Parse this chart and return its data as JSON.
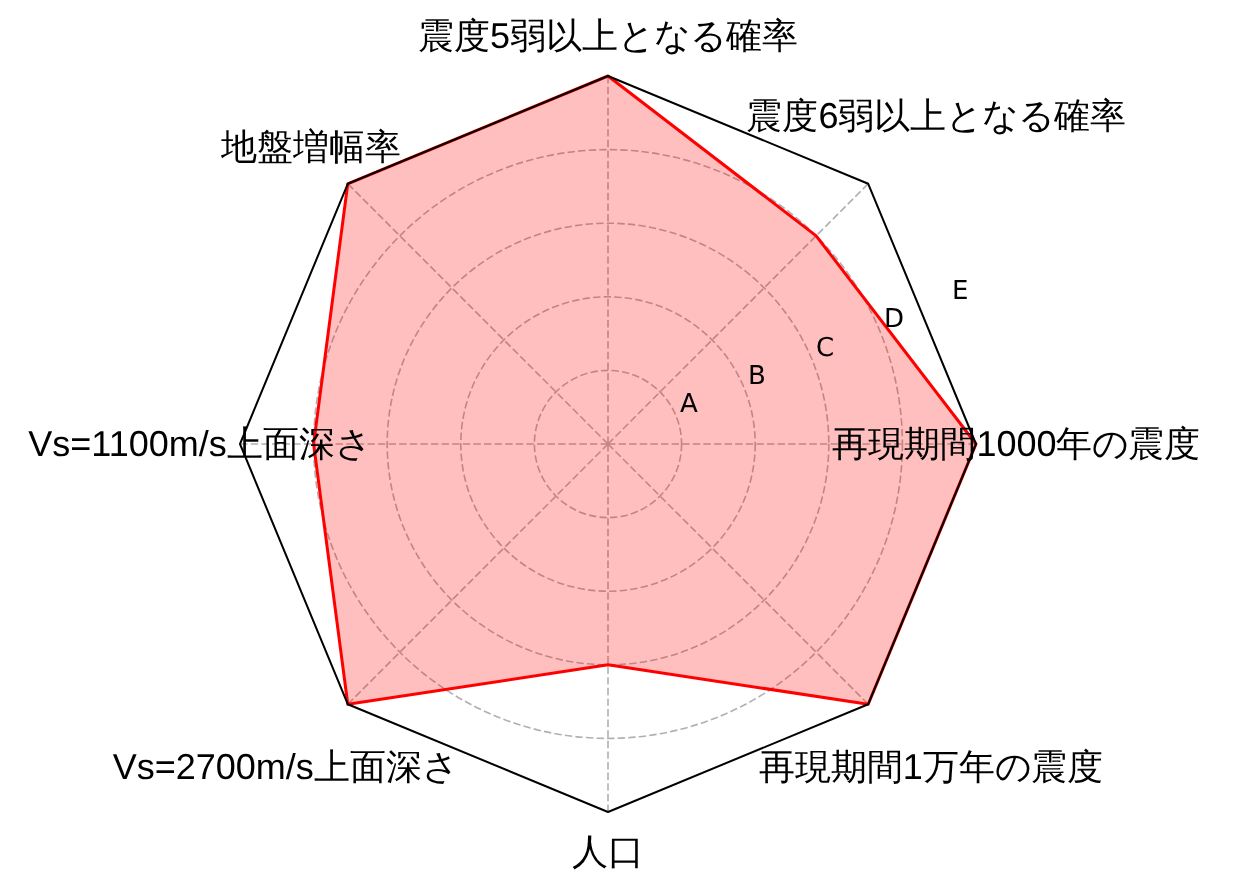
{
  "chart_data": {
    "type": "radar",
    "categories": [
      "震度5弱以上となる確率",
      "震度6弱以上となる確率",
      "再現期間1000年の震度",
      "再現期間1万年の震度",
      "人口",
      "Vs=2700m/s上面深さ",
      "Vs=1100m/s上面深さ",
      "地盤増幅率"
    ],
    "series": [
      {
        "color": "#ff0000",
        "values": [
          5,
          4,
          5,
          5,
          3,
          5,
          4,
          5
        ]
      }
    ],
    "ylim": [
      0,
      5
    ],
    "yticks": [
      {
        "value": 1,
        "label": "A"
      },
      {
        "value": 2,
        "label": "B"
      },
      {
        "value": 3,
        "label": "C"
      },
      {
        "value": 4,
        "label": "D"
      },
      {
        "value": 5,
        "label": "E"
      }
    ],
    "grid": true
  }
}
